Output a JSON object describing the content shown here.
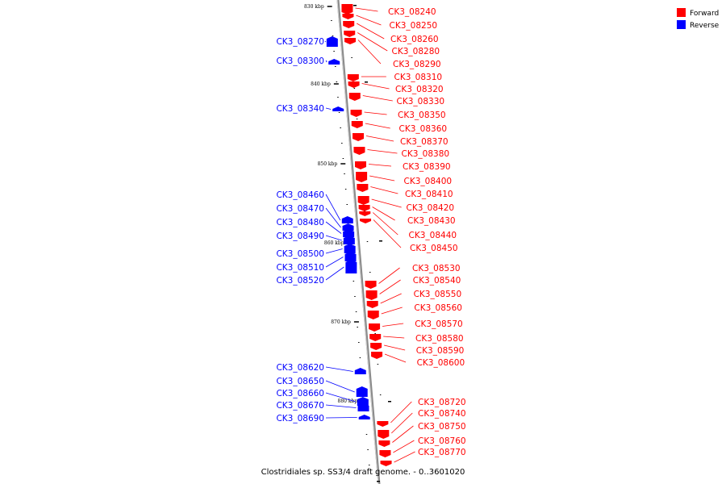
{
  "caption": "Clostridiales sp. SS3/4 draft genome. - 0..3601020",
  "legend": [
    {
      "label": "Forward",
      "color": "#ff0000"
    },
    {
      "label": "Reverse",
      "color": "#0000ff"
    }
  ],
  "colors": {
    "forward": "#ff0000",
    "reverse": "#0000ff",
    "backbone": "#888888"
  },
  "ticks": [
    "830 kbp",
    "840 kbp",
    "850 kbp",
    "860 kbp",
    "870 kbp",
    "880 kbp"
  ],
  "forward_genes": [
    "CK3_08240",
    "CK3_08250",
    "CK3_08260",
    "CK3_08280",
    "CK3_08290",
    "CK3_08310",
    "CK3_08320",
    "CK3_08330",
    "CK3_08350",
    "CK3_08360",
    "CK3_08370",
    "CK3_08380",
    "CK3_08390",
    "CK3_08400",
    "CK3_08410",
    "CK3_08420",
    "CK3_08430",
    "CK3_08440",
    "CK3_08450",
    "CK3_08530",
    "CK3_08540",
    "CK3_08550",
    "CK3_08560",
    "CK3_08570",
    "CK3_08580",
    "CK3_08590",
    "CK3_08600",
    "CK3_08720",
    "CK3_08740",
    "CK3_08750",
    "CK3_08760",
    "CK3_08770"
  ],
  "reverse_genes": [
    "CK3_08270",
    "CK3_08300",
    "CK3_08340",
    "CK3_08460",
    "CK3_08470",
    "CK3_08480",
    "CK3_08490",
    "CK3_08500",
    "CK3_08510",
    "CK3_08520",
    "CK3_08620",
    "CK3_08650",
    "CK3_08660",
    "CK3_08670",
    "CK3_08690"
  ]
}
